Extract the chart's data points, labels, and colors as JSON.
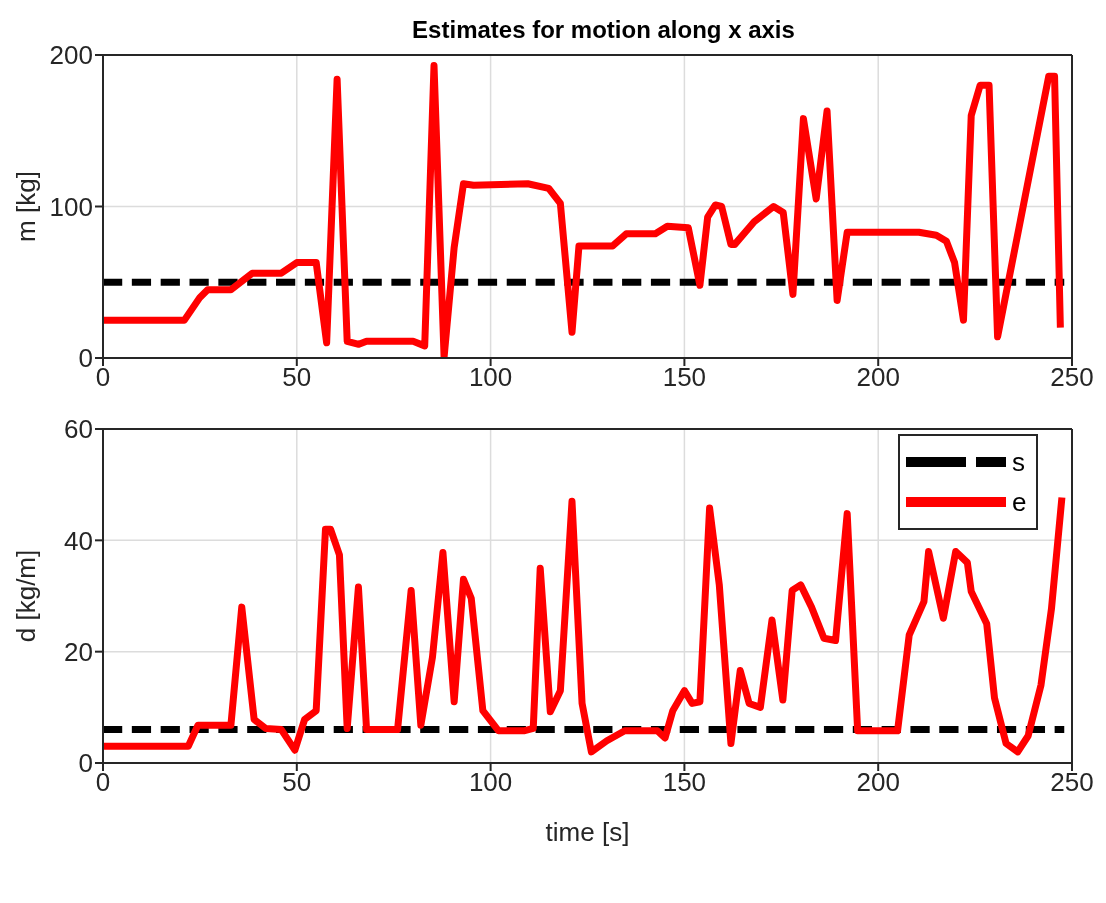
{
  "chart_data": [
    {
      "type": "line",
      "title": "Estimates for motion along x axis",
      "ylabel": "m [kg]",
      "xlim": [
        0,
        250
      ],
      "xticks": [
        0,
        50,
        100,
        150,
        200,
        250
      ],
      "ylim": [
        0,
        200
      ],
      "yticks": [
        0,
        100,
        200
      ],
      "grid": true,
      "legend": false,
      "series": [
        {
          "color": "#000000",
          "line_style": "dashed",
          "x": [
            0,
            248
          ],
          "values": [
            50,
            50
          ]
        },
        {
          "color": "#ff0000",
          "line_style": "solid",
          "x": [
            0,
            21,
            25,
            27,
            33,
            38.5,
            46,
            50,
            55,
            57.7,
            60.4,
            63,
            66,
            68,
            80,
            83,
            85.4,
            88,
            90.6,
            93,
            95.6,
            109.6,
            115,
            118,
            121,
            122.8,
            125,
            131.5,
            135,
            142.5,
            145.6,
            151,
            154,
            156,
            158,
            159.6,
            162,
            163,
            168,
            173,
            175.5,
            178,
            180.7,
            184,
            186.8,
            189.4,
            192,
            194.7,
            210.5,
            215,
            217.6,
            219.7,
            222,
            224,
            226.3,
            228.6,
            230.8,
            244,
            245.5,
            247
          ],
          "values": [
            25,
            25,
            40,
            45,
            45,
            56,
            56,
            63,
            63,
            10,
            184,
            11,
            9,
            11,
            11,
            8,
            193,
            0.5,
            73,
            115,
            114,
            115,
            112,
            102,
            17,
            74,
            74,
            74,
            82,
            82,
            87,
            86,
            48,
            93,
            101,
            100,
            75,
            75,
            90,
            100,
            96,
            42,
            158,
            105,
            163,
            38,
            83,
            83,
            83,
            81,
            77,
            63,
            25,
            160,
            180,
            180,
            14,
            186,
            186,
            20
          ]
        }
      ]
    },
    {
      "type": "line",
      "xlabel": "time [s]",
      "ylabel": "d [kg/m]",
      "xlim": [
        0,
        250
      ],
      "xticks": [
        0,
        50,
        100,
        150,
        200,
        250
      ],
      "ylim": [
        0,
        60
      ],
      "yticks": [
        0,
        20,
        40,
        60
      ],
      "grid": true,
      "legend": "top right",
      "series": [
        {
          "name": "s",
          "color": "#000000",
          "line_style": "dashed",
          "x": [
            0,
            248
          ],
          "values": [
            6,
            6
          ]
        },
        {
          "name": "e",
          "color": "#ff0000",
          "line_style": "solid",
          "x": [
            0,
            22,
            24.5,
            26,
            33,
            35.8,
            39,
            42,
            46,
            49.5,
            52,
            55,
            57.4,
            58.7,
            61,
            63,
            65.9,
            68,
            76,
            79.5,
            82,
            85,
            87.7,
            90.6,
            93,
            95,
            98,
            102,
            108.8,
            111,
            112.8,
            115.4,
            118,
            121,
            123.6,
            126,
            130,
            134.6,
            143,
            145,
            147,
            150,
            152,
            154,
            156.5,
            159,
            162,
            164.4,
            166.7,
            169.6,
            172.6,
            175.4,
            177.8,
            180,
            182.8,
            186,
            189,
            192,
            194.7,
            205,
            208,
            211.8,
            213,
            216.8,
            220,
            223,
            224,
            228,
            230,
            233,
            236,
            238.7,
            242,
            244.7,
            247.4
          ],
          "values": [
            3,
            3,
            6.8,
            6.8,
            6.8,
            28,
            7.8,
            6.2,
            6,
            2.3,
            7.8,
            9.4,
            42,
            42,
            37.4,
            6.2,
            31.6,
            6,
            6,
            31,
            6.8,
            19,
            37.8,
            11,
            33,
            29.6,
            9.4,
            5.8,
            5.8,
            6.2,
            35,
            9.2,
            13,
            47,
            10.7,
            2,
            4,
            5.8,
            5.8,
            4.5,
            9.4,
            13,
            10.7,
            11,
            45.8,
            32,
            3.5,
            16.6,
            10.7,
            10,
            25.7,
            11.3,
            31,
            32,
            28,
            22.4,
            22,
            44.8,
            5.8,
            5.8,
            23,
            29,
            38,
            26,
            38,
            36,
            30.8,
            25,
            11.7,
            3.5,
            2,
            4.9,
            14,
            27.7,
            47.7
          ]
        }
      ]
    }
  ]
}
